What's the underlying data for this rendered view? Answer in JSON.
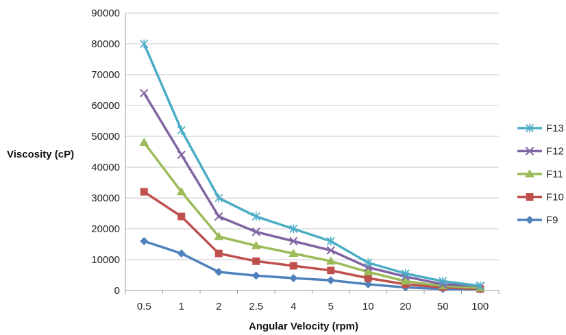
{
  "chart_data": {
    "type": "line",
    "title": "",
    "xlabel": "Angular Velocity (rpm)",
    "ylabel": "Viscosity (cP)",
    "categories": [
      "0.5",
      "1",
      "2",
      "2.5",
      "4",
      "5",
      "10",
      "20",
      "50",
      "100"
    ],
    "ylim": [
      0,
      90000
    ],
    "yticks": [
      0,
      10000,
      20000,
      30000,
      40000,
      50000,
      60000,
      70000,
      80000,
      90000
    ],
    "grid": true,
    "legend_position": "right",
    "series": [
      {
        "name": "F13",
        "color": "#4BACC6",
        "marker": "asterisk",
        "values": [
          80000,
          52000,
          30000,
          24000,
          20000,
          16000,
          9000,
          5500,
          3000,
          1500
        ]
      },
      {
        "name": "F12",
        "color": "#8064A2",
        "marker": "x",
        "values": [
          64000,
          44000,
          24000,
          19000,
          16000,
          13000,
          7500,
          4500,
          2000,
          1500
        ]
      },
      {
        "name": "F11",
        "color": "#9BBB59",
        "marker": "triangle",
        "values": [
          48000,
          32000,
          17500,
          14500,
          12000,
          9500,
          6000,
          3000,
          1500,
          800
        ]
      },
      {
        "name": "F10",
        "color": "#C0504D",
        "marker": "square",
        "values": [
          32000,
          24000,
          12000,
          9500,
          8000,
          6500,
          4000,
          2000,
          1000,
          500
        ]
      },
      {
        "name": "F9",
        "color": "#4F81BD",
        "marker": "diamond",
        "values": [
          16000,
          12000,
          6000,
          4800,
          4000,
          3300,
          2000,
          1000,
          500,
          300
        ]
      }
    ]
  }
}
